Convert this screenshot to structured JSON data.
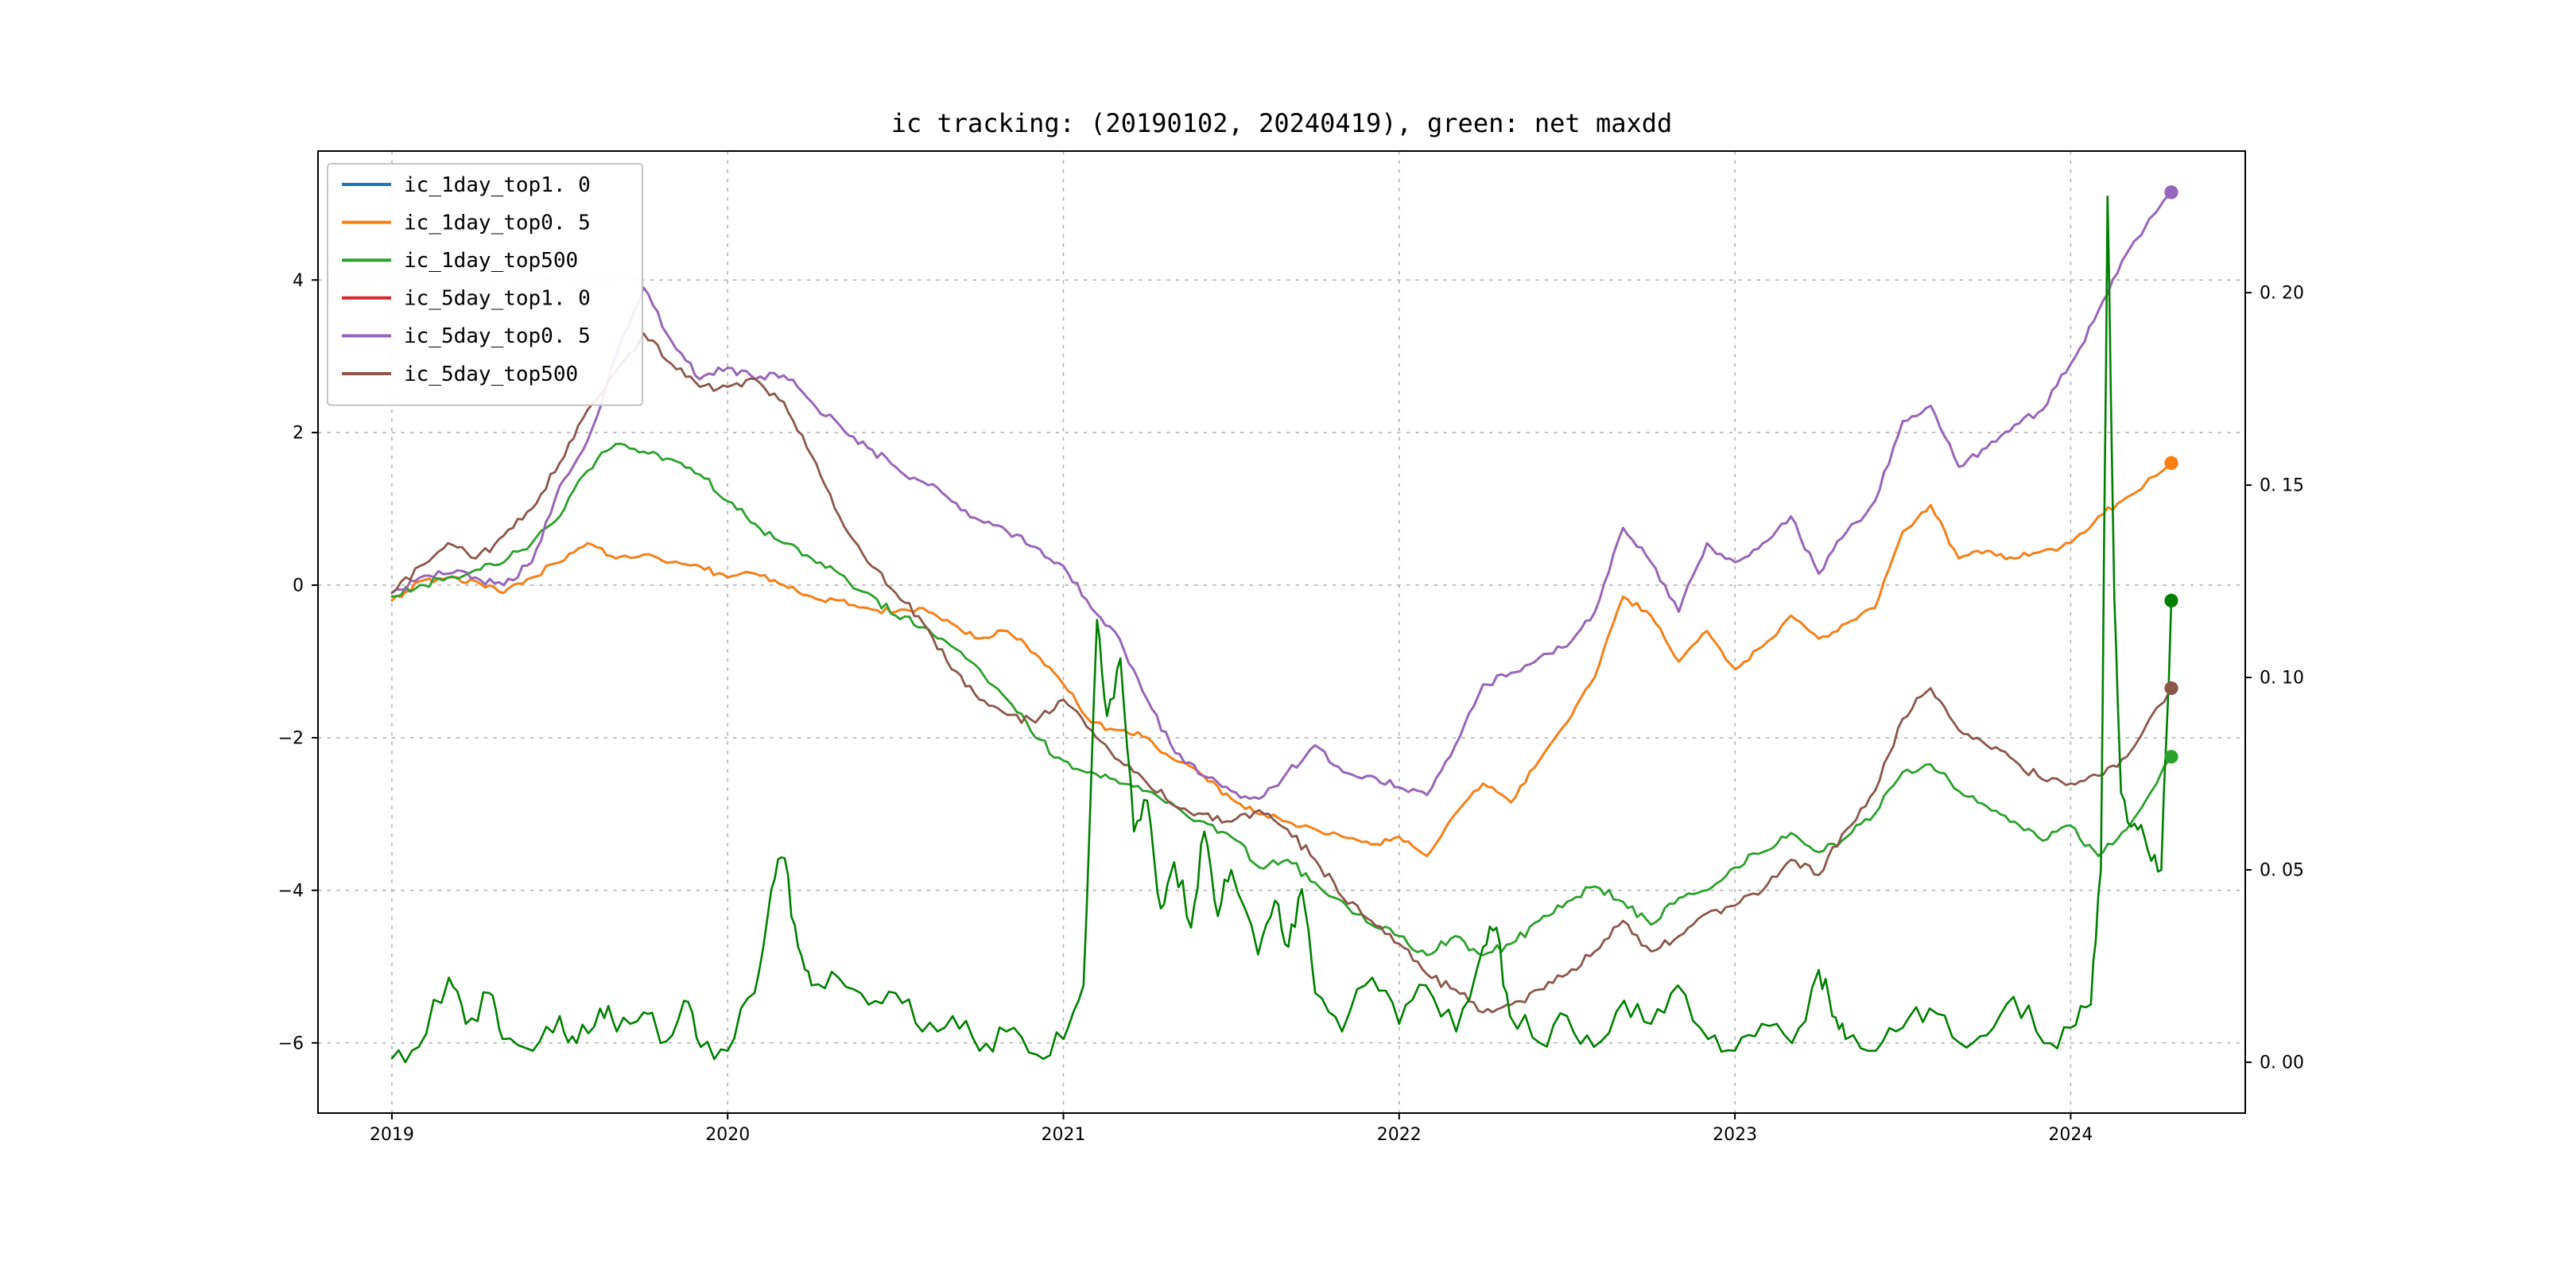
{
  "figure": {
    "background": "#ffffff"
  },
  "chart_data": {
    "type": "line",
    "title": "ic tracking: (20190102, 20240419), green: net maxdd",
    "legend_position": "upper left",
    "grid": true,
    "grid_color": "#b2b2b2",
    "xlim": [
      2018.78,
      2024.52
    ],
    "ylim_left": [
      -6.92,
      5.69
    ],
    "ylim_right": [
      -0.0132,
      0.2368
    ],
    "x_ticks": [
      {
        "v": 2019,
        "label": "2019"
      },
      {
        "v": 2020,
        "label": "2020"
      },
      {
        "v": 2021,
        "label": "2021"
      },
      {
        "v": 2022,
        "label": "2022"
      },
      {
        "v": 2023,
        "label": "2023"
      },
      {
        "v": 2024,
        "label": "2024"
      }
    ],
    "y_ticks_left": [
      {
        "v": 4,
        "label": "4"
      },
      {
        "v": 2,
        "label": "2"
      },
      {
        "v": 0,
        "label": "0"
      },
      {
        "v": -2,
        "label": "−2"
      },
      {
        "v": -4,
        "label": "−4"
      },
      {
        "v": -6,
        "label": "−6"
      }
    ],
    "y_ticks_right": [
      {
        "v": 0.2,
        "label": "0. 20"
      },
      {
        "v": 0.15,
        "label": "0. 15"
      },
      {
        "v": 0.1,
        "label": "0. 10"
      },
      {
        "v": 0.05,
        "label": "0. 05"
      },
      {
        "v": 0.0,
        "label": "0. 00"
      }
    ],
    "x_monthly": [
      2019.0,
      2019.083,
      2019.167,
      2019.25,
      2019.333,
      2019.417,
      2019.5,
      2019.583,
      2019.667,
      2019.75,
      2019.833,
      2019.917,
      2020.0,
      2020.083,
      2020.167,
      2020.25,
      2020.333,
      2020.417,
      2020.5,
      2020.583,
      2020.667,
      2020.75,
      2020.833,
      2020.917,
      2021.0,
      2021.083,
      2021.167,
      2021.25,
      2021.333,
      2021.417,
      2021.5,
      2021.583,
      2021.667,
      2021.75,
      2021.833,
      2021.917,
      2022.0,
      2022.083,
      2022.167,
      2022.25,
      2022.333,
      2022.417,
      2022.5,
      2022.583,
      2022.667,
      2022.75,
      2022.833,
      2022.917,
      2023.0,
      2023.083,
      2023.167,
      2023.25,
      2023.333,
      2023.417,
      2023.5,
      2023.583,
      2023.667,
      2023.75,
      2023.833,
      2023.917,
      2024.0,
      2024.083,
      2024.167,
      2024.3
    ],
    "series": [
      {
        "name": "ic_1day_top1.0",
        "label": "ic_1day_top1. 0",
        "color": "#1f77b4",
        "axis": "left",
        "seed": 2,
        "noise": 0.05,
        "width": 1.4,
        "end_marker": true,
        "in_legend": true,
        "values": [
          -0.2,
          0.05,
          0.1,
          0.05,
          -0.1,
          0.1,
          0.3,
          0.55,
          0.35,
          0.4,
          0.3,
          0.25,
          0.1,
          0.15,
          0.0,
          -0.15,
          -0.2,
          -0.3,
          -0.35,
          -0.3,
          -0.5,
          -0.7,
          -0.6,
          -0.9,
          -1.3,
          -1.8,
          -1.9,
          -2.0,
          -2.3,
          -2.5,
          -2.8,
          -3.0,
          -3.1,
          -3.2,
          -3.3,
          -3.4,
          -3.3,
          -3.55,
          -3.0,
          -2.6,
          -2.85,
          -2.3,
          -1.8,
          -1.2,
          -0.15,
          -0.4,
          -1.0,
          -0.6,
          -1.1,
          -0.8,
          -0.4,
          -0.7,
          -0.5,
          -0.3,
          0.7,
          1.05,
          0.35,
          0.45,
          0.35,
          0.45,
          0.55,
          0.9,
          1.15,
          1.6
        ]
      },
      {
        "name": "ic_1day_top0.5",
        "label": "ic_1day_top0. 5",
        "color": "#ff7f0e",
        "axis": "left",
        "seed": 2,
        "noise": 0.05,
        "width": 1.4,
        "end_marker": true,
        "in_legend": true,
        "values": [
          -0.2,
          0.05,
          0.1,
          0.05,
          -0.1,
          0.1,
          0.3,
          0.55,
          0.35,
          0.4,
          0.3,
          0.25,
          0.1,
          0.15,
          0.0,
          -0.15,
          -0.2,
          -0.3,
          -0.35,
          -0.3,
          -0.5,
          -0.7,
          -0.6,
          -0.9,
          -1.3,
          -1.8,
          -1.9,
          -2.0,
          -2.3,
          -2.5,
          -2.8,
          -3.0,
          -3.1,
          -3.2,
          -3.3,
          -3.4,
          -3.3,
          -3.55,
          -3.0,
          -2.6,
          -2.85,
          -2.3,
          -1.8,
          -1.2,
          -0.15,
          -0.4,
          -1.0,
          -0.6,
          -1.1,
          -0.8,
          -0.4,
          -0.7,
          -0.5,
          -0.3,
          0.7,
          1.05,
          0.35,
          0.45,
          0.35,
          0.45,
          0.55,
          0.9,
          1.15,
          1.6
        ]
      },
      {
        "name": "ic_1day_top500",
        "label": "ic_1day_top500",
        "color": "#2ca02c",
        "axis": "left",
        "seed": 3,
        "noise": 0.07,
        "width": 1.4,
        "end_marker": true,
        "in_legend": true,
        "values": [
          -0.15,
          0.0,
          0.1,
          0.2,
          0.3,
          0.55,
          0.9,
          1.5,
          1.85,
          1.75,
          1.65,
          1.45,
          1.1,
          0.8,
          0.55,
          0.35,
          0.15,
          -0.1,
          -0.4,
          -0.55,
          -0.8,
          -1.1,
          -1.5,
          -2.0,
          -2.3,
          -2.45,
          -2.6,
          -2.7,
          -2.9,
          -3.1,
          -3.3,
          -3.7,
          -3.6,
          -3.9,
          -4.15,
          -4.45,
          -4.6,
          -4.85,
          -4.6,
          -4.85,
          -4.7,
          -4.4,
          -4.15,
          -3.95,
          -4.15,
          -4.45,
          -4.1,
          -4.0,
          -3.7,
          -3.5,
          -3.25,
          -3.5,
          -3.3,
          -3.0,
          -2.45,
          -2.35,
          -2.7,
          -2.9,
          -3.1,
          -3.35,
          -3.15,
          -3.55,
          -3.2,
          -2.25
        ]
      },
      {
        "name": "ic_5day_top1.0",
        "label": "ic_5day_top1. 0",
        "color": "#d62728",
        "axis": "left",
        "seed": 5,
        "noise": 0.07,
        "width": 1.4,
        "end_marker": true,
        "in_legend": true,
        "values": [
          -0.1,
          0.1,
          0.15,
          0.1,
          0.0,
          0.3,
          1.3,
          1.9,
          3.0,
          3.9,
          3.2,
          2.7,
          2.85,
          2.7,
          2.75,
          2.4,
          2.1,
          1.8,
          1.55,
          1.35,
          1.1,
          0.85,
          0.7,
          0.5,
          0.25,
          -0.3,
          -0.7,
          -1.5,
          -2.2,
          -2.5,
          -2.7,
          -2.8,
          -2.45,
          -2.1,
          -2.45,
          -2.5,
          -2.65,
          -2.75,
          -2.1,
          -1.3,
          -1.15,
          -0.95,
          -0.8,
          -0.35,
          0.75,
          0.3,
          -0.35,
          0.55,
          0.3,
          0.55,
          0.9,
          0.15,
          0.7,
          1.1,
          2.15,
          2.35,
          1.55,
          1.8,
          2.1,
          2.3,
          2.9,
          3.6,
          4.35,
          5.15
        ]
      },
      {
        "name": "ic_5day_top0.5",
        "label": "ic_5day_top0. 5",
        "color": "#9467bd",
        "axis": "left",
        "seed": 5,
        "noise": 0.07,
        "width": 1.4,
        "end_marker": true,
        "in_legend": true,
        "values": [
          -0.1,
          0.1,
          0.15,
          0.1,
          0.0,
          0.3,
          1.3,
          1.9,
          3.0,
          3.9,
          3.2,
          2.7,
          2.85,
          2.7,
          2.75,
          2.4,
          2.1,
          1.8,
          1.55,
          1.35,
          1.1,
          0.85,
          0.7,
          0.5,
          0.25,
          -0.3,
          -0.7,
          -1.5,
          -2.2,
          -2.5,
          -2.7,
          -2.8,
          -2.45,
          -2.1,
          -2.45,
          -2.5,
          -2.65,
          -2.75,
          -2.1,
          -1.3,
          -1.15,
          -0.95,
          -0.8,
          -0.35,
          0.75,
          0.3,
          -0.35,
          0.55,
          0.3,
          0.55,
          0.9,
          0.15,
          0.7,
          1.1,
          2.15,
          2.35,
          1.55,
          1.8,
          2.1,
          2.3,
          2.9,
          3.6,
          4.35,
          5.15
        ]
      },
      {
        "name": "ic_5day_top500",
        "label": "ic_5day_top500",
        "color": "#8c564b",
        "axis": "left",
        "seed": 6,
        "noise": 0.07,
        "width": 1.4,
        "end_marker": true,
        "in_legend": true,
        "values": [
          -0.1,
          0.25,
          0.55,
          0.35,
          0.65,
          1.0,
          1.6,
          2.3,
          2.8,
          3.3,
          2.9,
          2.6,
          2.6,
          2.7,
          2.4,
          1.7,
          0.9,
          0.3,
          -0.1,
          -0.5,
          -1.1,
          -1.5,
          -1.7,
          -1.8,
          -1.5,
          -1.9,
          -2.3,
          -2.6,
          -2.9,
          -3.0,
          -3.1,
          -2.95,
          -3.2,
          -3.6,
          -4.1,
          -4.4,
          -4.7,
          -5.1,
          -5.3,
          -5.6,
          -5.5,
          -5.3,
          -5.1,
          -4.8,
          -4.4,
          -4.8,
          -4.6,
          -4.3,
          -4.2,
          -4.0,
          -3.6,
          -3.8,
          -3.2,
          -2.7,
          -1.75,
          -1.35,
          -1.9,
          -2.1,
          -2.3,
          -2.55,
          -2.6,
          -2.5,
          -2.25,
          -1.35
        ]
      },
      {
        "name": "net_maxdd",
        "label": "net maxdd",
        "color": "#008000",
        "axis": "right",
        "seed": 7,
        "noise": 0.004,
        "clamp_min": 0,
        "width": 1.3,
        "end_marker": true,
        "in_legend": false,
        "x": [
          2019.0,
          2019.08,
          2019.17,
          2019.22,
          2019.29,
          2019.33,
          2019.42,
          2019.5,
          2019.55,
          2019.62,
          2019.67,
          2019.75,
          2019.8,
          2019.87,
          2019.92,
          2020.0,
          2020.08,
          2020.13,
          2020.17,
          2020.21,
          2020.25,
          2020.33,
          2020.42,
          2020.5,
          2020.58,
          2020.67,
          2020.75,
          2020.83,
          2020.92,
          2021.0,
          2021.06,
          2021.1,
          2021.13,
          2021.17,
          2021.21,
          2021.25,
          2021.29,
          2021.33,
          2021.38,
          2021.42,
          2021.46,
          2021.5,
          2021.58,
          2021.63,
          2021.67,
          2021.71,
          2021.75,
          2021.83,
          2021.92,
          2022.0,
          2022.08,
          2022.17,
          2022.25,
          2022.29,
          2022.33,
          2022.42,
          2022.5,
          2022.58,
          2022.67,
          2022.75,
          2022.83,
          2022.92,
          2023.0,
          2023.08,
          2023.17,
          2023.25,
          2023.29,
          2023.33,
          2023.42,
          2023.5,
          2023.58,
          2023.67,
          2023.75,
          2023.83,
          2023.92,
          2024.0,
          2024.06,
          2024.09,
          2024.11,
          2024.13,
          2024.15,
          2024.19,
          2024.23,
          2024.27,
          2024.3
        ],
        "values": [
          0.001,
          0.004,
          0.022,
          0.01,
          0.018,
          0.006,
          0.003,
          0.012,
          0.005,
          0.014,
          0.008,
          0.013,
          0.005,
          0.016,
          0.004,
          0.003,
          0.018,
          0.045,
          0.053,
          0.03,
          0.02,
          0.022,
          0.015,
          0.018,
          0.008,
          0.012,
          0.003,
          0.008,
          0.002,
          0.006,
          0.02,
          0.115,
          0.09,
          0.105,
          0.06,
          0.068,
          0.04,
          0.052,
          0.035,
          0.06,
          0.038,
          0.05,
          0.028,
          0.042,
          0.03,
          0.045,
          0.018,
          0.008,
          0.022,
          0.01,
          0.02,
          0.008,
          0.03,
          0.035,
          0.012,
          0.005,
          0.012,
          0.004,
          0.016,
          0.01,
          0.02,
          0.006,
          0.003,
          0.01,
          0.005,
          0.024,
          0.012,
          0.006,
          0.003,
          0.009,
          0.014,
          0.005,
          0.007,
          0.017,
          0.005,
          0.009,
          0.015,
          0.05,
          0.225,
          0.12,
          0.07,
          0.062,
          0.055,
          0.05,
          0.12
        ]
      }
    ]
  }
}
